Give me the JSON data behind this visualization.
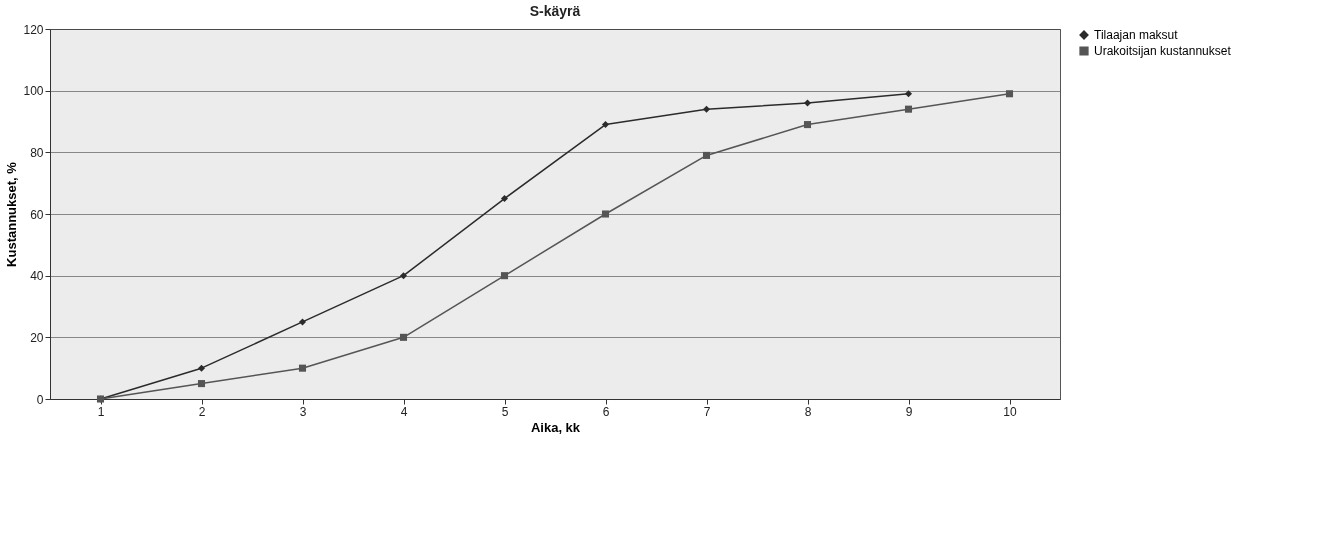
{
  "chart_data": {
    "type": "line",
    "title": "S-käyrä",
    "xlabel": "Aika, kk",
    "ylabel": "Kustannukset, %",
    "categories": [
      "1",
      "2",
      "3",
      "4",
      "5",
      "6",
      "7",
      "8",
      "9",
      "10"
    ],
    "series": [
      {
        "name": "Tilaajan maksut",
        "color": "#2b2b2b",
        "marker": "diamond",
        "values": [
          0,
          10,
          25,
          40,
          65,
          89,
          94,
          96,
          99,
          null
        ]
      },
      {
        "name": "Urakoitsijan kustannukset",
        "color": "#555555",
        "marker": "square",
        "values": [
          0,
          5,
          10,
          20,
          40,
          60,
          79,
          89,
          94,
          99
        ]
      }
    ],
    "ylim": [
      0,
      120
    ],
    "yticks": [
      0,
      20,
      40,
      60,
      80,
      100,
      120
    ],
    "grid": "y",
    "legend": "right",
    "line_style": "solid"
  }
}
